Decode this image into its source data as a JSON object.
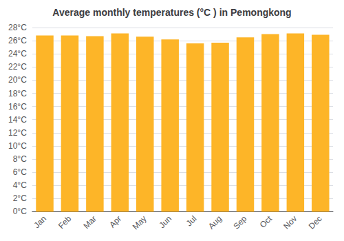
{
  "chart_data": {
    "type": "bar",
    "title": "Average monthly temperatures (°C ) in Pemongkong",
    "categories": [
      "Jan",
      "Feb",
      "Mar",
      "Apr",
      "May",
      "Jun",
      "Jul",
      "Aug",
      "Sep",
      "Oct",
      "Nov",
      "Dec"
    ],
    "values": [
      26.8,
      26.8,
      26.7,
      27.1,
      26.6,
      26.2,
      25.6,
      25.7,
      26.5,
      27.0,
      27.1,
      26.9
    ],
    "color": "#FDB528",
    "ylim": [
      0,
      28
    ],
    "yticks": [
      {
        "value": 0,
        "label": "0°C"
      },
      {
        "value": 2,
        "label": "2°C"
      },
      {
        "value": 4,
        "label": "4°C"
      },
      {
        "value": 6,
        "label": "6°C"
      },
      {
        "value": 8,
        "label": "8°C"
      },
      {
        "value": 10,
        "label": "10°C"
      },
      {
        "value": 12,
        "label": "12°C"
      },
      {
        "value": 14,
        "label": "14°C"
      },
      {
        "value": 16,
        "label": "16°C"
      },
      {
        "value": 18,
        "label": "18°C"
      },
      {
        "value": 20,
        "label": "20°C"
      },
      {
        "value": 22,
        "label": "22°C"
      },
      {
        "value": 24,
        "label": "24°C"
      },
      {
        "value": 26,
        "label": "26°C"
      },
      {
        "value": 28,
        "label": "28°C"
      }
    ],
    "grid": true
  }
}
